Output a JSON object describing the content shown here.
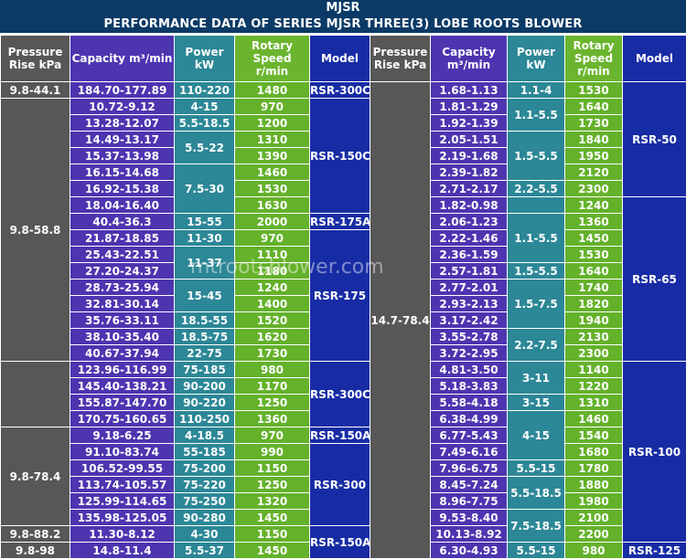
{
  "title": "MJSR",
  "subtitle": "PERFORMANCE DATA OF SERIES MJSR THREE(3) LOBE ROOTS BLOWER",
  "watermark": "mtrootsblower.com",
  "headers": {
    "pressure": "Pressure Rise kPa",
    "capacity": "Capacity m³/min",
    "power": "Power kW",
    "rotary": "Rotary Speed r/min",
    "model": "Model"
  },
  "left": {
    "pressure_groups": [
      "9.8-44.1",
      "9.8-58.8",
      "9.8-78.4",
      "9.8-88.2",
      "9.8-98"
    ],
    "capacity": [
      "184.70-177.89",
      "10.72-9.12",
      "13.28-12.07",
      "14.49-13.17",
      "15.37-13.98",
      "16.15-14.68",
      "16.92-15.38",
      "18.04-16.40",
      "40.4-36.3",
      "21.87-18.85",
      "25.43-22.51",
      "27.20-24.37",
      "28.73-25.94",
      "32.81-30.14",
      "35.76-33.11",
      "38.10-35.40",
      "40.67-37.94",
      "123.96-116.99",
      "145.40-138.21",
      "155.87-147.70",
      "170.75-160.65",
      "9.18-6.25",
      "91.10-83.74",
      "106.52-99.55",
      "113.74-105.57",
      "125.99-114.65",
      "135.98-125.05",
      "11.30-8.12",
      "14.8-11.4"
    ],
    "power": [
      "110-220",
      "4-15",
      "5.5-18.5",
      "5.5-22",
      "7.5-30",
      "15-55",
      "11-30",
      "11-37",
      "15-45",
      "18.5-55",
      "18.5-75",
      "22-75",
      "75-185",
      "90-200",
      "90-220",
      "110-250",
      "4-18.5",
      "55-185",
      "75-200",
      "75-220",
      "75-250",
      "90-280",
      "4-30",
      "5.5-37"
    ],
    "rotary": [
      "1480",
      "970",
      "1200",
      "1310",
      "1390",
      "1460",
      "1530",
      "1630",
      "2000",
      "970",
      "1110",
      "1180",
      "1240",
      "1400",
      "1520",
      "1620",
      "1730",
      "980",
      "1170",
      "1250",
      "1360",
      "970",
      "990",
      "1150",
      "1250",
      "1320",
      "1450",
      "1150",
      "1450"
    ],
    "models": [
      "RSR-300C",
      "RSR-150C",
      "RSR-175A",
      "RSR-175",
      "RSR-300C",
      "RSR-150A",
      "RSR-300",
      "RSR-150A"
    ]
  },
  "right": {
    "pressure": "14.7-78.4",
    "capacity": [
      "1.68-1.13",
      "1.81-1.29",
      "1.92-1.39",
      "2.05-1.51",
      "2.19-1.68",
      "2.39-1.82",
      "2.71-2.17",
      "1.82-0.98",
      "2.06-1.23",
      "2.22-1.46",
      "2.36-1.59",
      "2.57-1.81",
      "2.77-2.01",
      "2.93-2.13",
      "3.17-2.42",
      "3.55-2.78",
      "3.72-2.95",
      "4.81-3.50",
      "5.18-3.83",
      "5.58-4.18",
      "6.38-4.99",
      "6.77-5.43",
      "7.49-6.16",
      "7.96-6.75",
      "8.45-7.24",
      "8.96-7.75",
      "9.53-8.40",
      "10.13-8.92",
      "6.30-4.93"
    ],
    "power": [
      "1.1-4",
      "1.1-5.5",
      "1.5-5.5",
      "2.2-5.5",
      "1.1-5.5",
      "1.5-5.5",
      "1.5-7.5",
      "2.2-7.5",
      "3-11",
      "3-15",
      "4-15",
      "5.5-15",
      "5.5-18.5",
      "7.5-18.5",
      "5.5-15"
    ],
    "rotary": [
      "1530",
      "1640",
      "1730",
      "1840",
      "1950",
      "2120",
      "2300",
      "1240",
      "1360",
      "1450",
      "1530",
      "1640",
      "1740",
      "1820",
      "1940",
      "2130",
      "2300",
      "1140",
      "1220",
      "1310",
      "1460",
      "1540",
      "1680",
      "1780",
      "1880",
      "1980",
      "2100",
      "2200",
      "980"
    ],
    "models": [
      "RSR-50",
      "RSR-65",
      "RSR-100",
      "RSR-125"
    ]
  }
}
